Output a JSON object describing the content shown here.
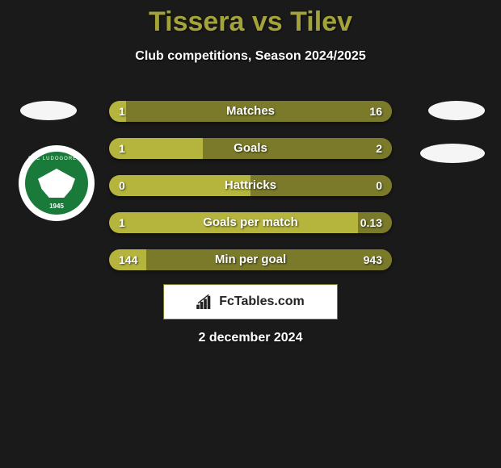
{
  "title": {
    "player1": "Tissera",
    "vs": " vs ",
    "player2": "Tilev",
    "color": "#a3a33a"
  },
  "subtitle": "Club competitions, Season 2024/2025",
  "club_left": {
    "name": "PFC LUDOGORETS",
    "year": "1945"
  },
  "bars": [
    {
      "label": "Matches",
      "left_val": "1",
      "right_val": "16",
      "left_pct": 6,
      "right_pct": 94
    },
    {
      "label": "Goals",
      "left_val": "1",
      "right_val": "2",
      "left_pct": 33,
      "right_pct": 67
    },
    {
      "label": "Hattricks",
      "left_val": "0",
      "right_val": "0",
      "left_pct": 50,
      "right_pct": 50
    },
    {
      "label": "Goals per match",
      "left_val": "1",
      "right_val": "0.13",
      "left_pct": 88,
      "right_pct": 12
    },
    {
      "label": "Min per goal",
      "left_val": "144",
      "right_val": "943",
      "left_pct": 13,
      "right_pct": 87
    }
  ],
  "bar_colors": {
    "left": "#b5b53d",
    "right": "#7a7a2a",
    "height": 26,
    "radius": 13,
    "gap": 20
  },
  "brand": "FcTables.com",
  "date": "2 december 2024",
  "bg": "#1a1a1a",
  "font": {
    "title_size": 34,
    "subtitle_size": 16,
    "bar_label_size": 15,
    "bar_val_size": 14,
    "date_size": 16
  }
}
